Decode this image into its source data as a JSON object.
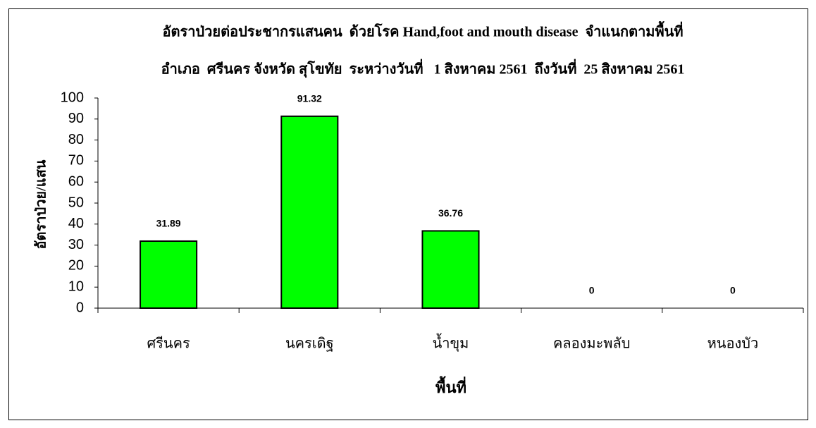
{
  "chart_data": {
    "type": "bar",
    "title": "อัตราป่วยต่อประชากรแสนคน  ด้วยโรค Hand,foot and mouth disease  จำแนกตามพื้นที่",
    "subtitle": "อำเภอ  ศรีนคร จังหวัด สุโขทัย  ระหว่างวันที่   1 สิงหาคม 2561  ถึงวันที่  25 สิงหาคม 2561",
    "x_label": "พื้นที่",
    "y_label": "อัตราป่วย/แสน",
    "categories": [
      "ศรีนคร",
      "นครเดิฐ",
      "น้ำขุม",
      "คลองมะพลับ",
      "หนองบัว"
    ],
    "values": [
      31.89,
      91.32,
      36.76,
      0,
      0
    ],
    "color": "#00ff00",
    "ylim": [
      0,
      100
    ],
    "yticks": [
      0,
      10,
      20,
      30,
      40,
      50,
      60,
      70,
      80,
      90,
      100
    ]
  }
}
